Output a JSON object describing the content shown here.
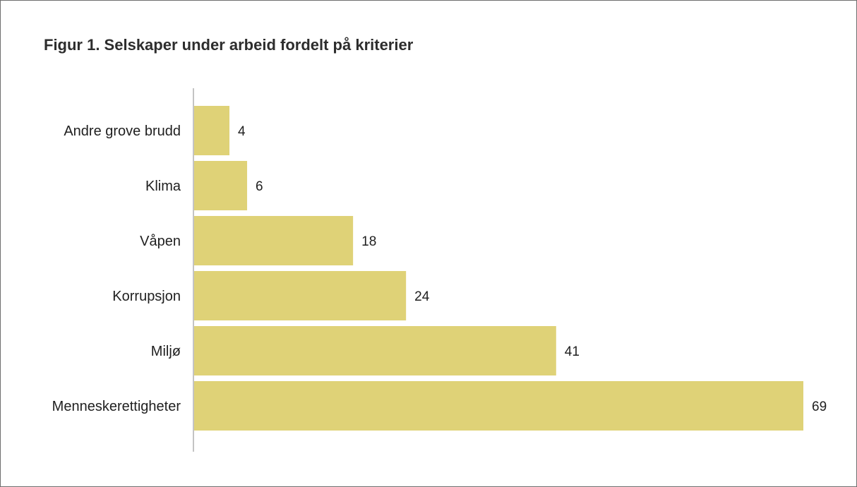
{
  "figure_title": "Figur 1. Selskaper under arbeid fordelt på kriterier",
  "colors": {
    "bar": "#dfd277",
    "axis": "#8a8a8a",
    "text": "#1f1f1f"
  },
  "chart_data": {
    "type": "bar",
    "orientation": "horizontal",
    "title": "Figur 1. Selskaper under arbeid fordelt på kriterier",
    "categories": [
      "Andre grove brudd",
      "Klima",
      "Våpen",
      "Korrupsjon",
      "Miljø",
      "Menneskerettigheter"
    ],
    "values": [
      4,
      6,
      18,
      24,
      41,
      69
    ],
    "value_labels": [
      "4",
      "6",
      "18",
      "24",
      "41",
      "69"
    ],
    "xlim": [
      0,
      69
    ],
    "grid": false,
    "legend": "none"
  }
}
